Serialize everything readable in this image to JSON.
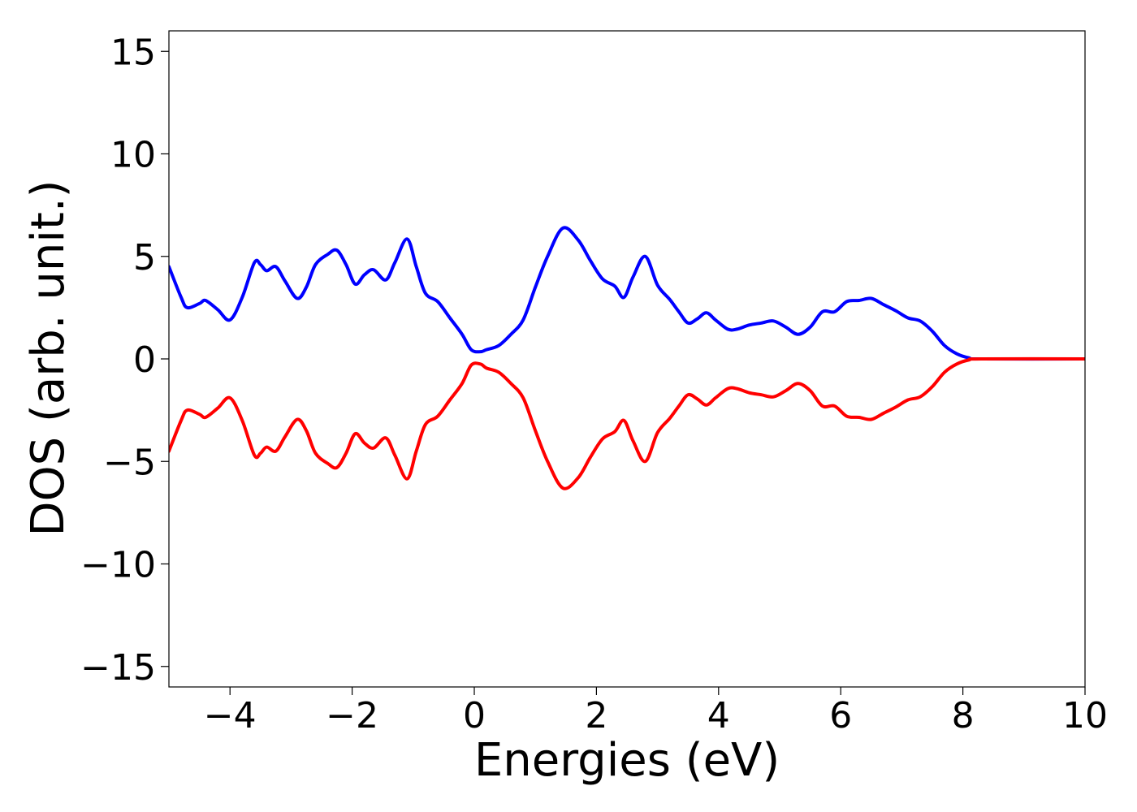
{
  "chart_data": {
    "type": "line",
    "xlabel": "Energies (eV)",
    "ylabel": "DOS (arb. unit.)",
    "xlim": [
      -5,
      10
    ],
    "ylim": [
      -16,
      16
    ],
    "xticks": [
      {
        "value": -4,
        "label": "−4"
      },
      {
        "value": -2,
        "label": "−2"
      },
      0,
      2,
      4,
      6,
      8,
      10
    ],
    "yticks": [
      {
        "value": -15,
        "label": "−15"
      },
      {
        "value": -10,
        "label": "−10"
      },
      {
        "value": -5,
        "label": "−5"
      },
      0,
      5,
      10,
      15
    ],
    "x": [
      -5,
      -4.8,
      -4.7,
      -4.5,
      -4.4,
      -4.2,
      -4.0,
      -3.8,
      -3.6,
      -3.5,
      -3.4,
      -3.25,
      -3.1,
      -2.9,
      -2.75,
      -2.6,
      -2.4,
      -2.25,
      -2.1,
      -1.95,
      -1.8,
      -1.65,
      -1.45,
      -1.3,
      -1.1,
      -0.95,
      -0.8,
      -0.6,
      -0.4,
      -0.2,
      -0.05,
      0.1,
      0.2,
      0.4,
      0.6,
      0.8,
      1.0,
      1.2,
      1.45,
      1.7,
      1.9,
      2.1,
      2.3,
      2.45,
      2.6,
      2.8,
      3.0,
      3.2,
      3.35,
      3.5,
      3.65,
      3.8,
      3.95,
      4.15,
      4.3,
      4.5,
      4.7,
      4.9,
      5.1,
      5.3,
      5.5,
      5.7,
      5.9,
      6.1,
      6.3,
      6.5,
      6.7,
      6.9,
      7.1,
      7.3,
      7.5,
      7.7,
      7.9,
      8.1,
      8.3,
      10
    ],
    "series": [
      {
        "color": "#0000ff",
        "values": [
          4.5,
          3.0,
          2.5,
          2.7,
          2.85,
          2.4,
          1.9,
          3.0,
          4.7,
          4.6,
          4.3,
          4.5,
          3.8,
          2.95,
          3.5,
          4.6,
          5.1,
          5.3,
          4.6,
          3.65,
          4.1,
          4.35,
          3.85,
          4.7,
          5.85,
          4.5,
          3.2,
          2.8,
          2.0,
          1.2,
          0.45,
          0.35,
          0.45,
          0.65,
          1.2,
          1.9,
          3.5,
          5.0,
          6.38,
          5.8,
          4.8,
          3.9,
          3.55,
          3.0,
          4.0,
          5.0,
          3.6,
          2.9,
          2.3,
          1.75,
          1.95,
          2.25,
          1.9,
          1.45,
          1.45,
          1.65,
          1.75,
          1.85,
          1.55,
          1.2,
          1.55,
          2.3,
          2.3,
          2.8,
          2.85,
          2.95,
          2.65,
          2.35,
          2.0,
          1.85,
          1.35,
          0.65,
          0.25,
          0.05,
          0,
          0
        ]
      },
      {
        "color": "#ff0000",
        "values": [
          -4.5,
          -3.0,
          -2.5,
          -2.7,
          -2.85,
          -2.4,
          -1.9,
          -3.0,
          -4.7,
          -4.6,
          -4.3,
          -4.5,
          -3.8,
          -2.95,
          -3.5,
          -4.6,
          -5.1,
          -5.3,
          -4.6,
          -3.65,
          -4.1,
          -4.35,
          -3.85,
          -4.7,
          -5.85,
          -4.5,
          -3.2,
          -2.8,
          -2.0,
          -1.2,
          -0.3,
          -0.25,
          -0.45,
          -0.65,
          -1.2,
          -1.9,
          -3.5,
          -5.0,
          -6.3,
          -5.8,
          -4.8,
          -3.9,
          -3.55,
          -3.0,
          -4.0,
          -5.0,
          -3.6,
          -2.9,
          -2.3,
          -1.75,
          -1.95,
          -2.25,
          -1.9,
          -1.45,
          -1.45,
          -1.65,
          -1.75,
          -1.85,
          -1.55,
          -1.2,
          -1.55,
          -2.3,
          -2.3,
          -2.8,
          -2.85,
          -2.95,
          -2.65,
          -2.35,
          -2.0,
          -1.85,
          -1.35,
          -0.65,
          -0.25,
          -0.05,
          0,
          0
        ]
      }
    ]
  }
}
